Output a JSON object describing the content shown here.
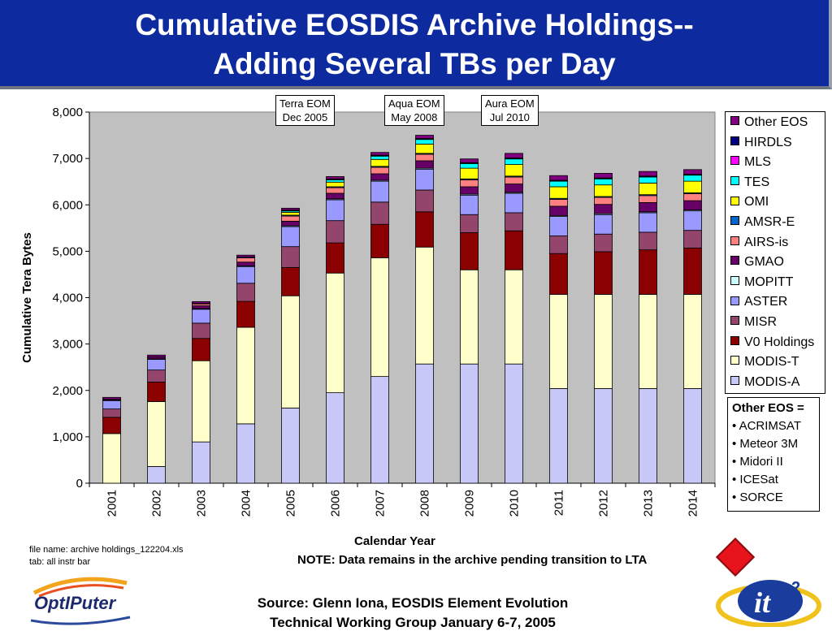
{
  "header": {
    "line1": "Cumulative EOSDIS Archive Holdings--",
    "line2": "Adding Several TBs per Day"
  },
  "callouts": [
    {
      "line1": "Terra EOM",
      "line2": "Dec 2005"
    },
    {
      "line1": "Aqua EOM",
      "line2": "May 2008"
    },
    {
      "line1": "Aura EOM",
      "line2": "Jul 2010"
    }
  ],
  "chart_data": {
    "type": "bar",
    "stacked": true,
    "title": "",
    "xlabel": "Calendar Year",
    "ylabel": "Cumulative Tera Bytes",
    "ylim": [
      0,
      8000
    ],
    "yticks": [
      "0",
      "1,000",
      "2,000",
      "3,000",
      "4,000",
      "5,000",
      "6,000",
      "7,000",
      "8,000"
    ],
    "grid": false,
    "legend_position": "right",
    "categories": [
      "2001",
      "2002",
      "2003",
      "2004",
      "2005",
      "2006",
      "2007",
      "2008",
      "2009",
      "2010",
      "2011",
      "2012",
      "2013",
      "2014"
    ],
    "series": [
      {
        "name": "MODIS-A",
        "color": "#c8c8f8",
        "values": [
          0,
          360,
          890,
          1280,
          1620,
          1950,
          2300,
          2570,
          2570,
          2570,
          2040,
          2040,
          2040,
          2040
        ]
      },
      {
        "name": "MODIS-T",
        "color": "#ffffcc",
        "values": [
          1070,
          1400,
          1750,
          2080,
          2420,
          2580,
          2560,
          2520,
          2030,
          2030,
          2030,
          2030,
          2030,
          2030
        ]
      },
      {
        "name": "V0 Holdings",
        "color": "#8b0000",
        "values": [
          350,
          420,
          480,
          560,
          610,
          650,
          720,
          760,
          800,
          840,
          880,
          920,
          960,
          1000
        ]
      },
      {
        "name": "MISR",
        "color": "#93456b",
        "values": [
          180,
          260,
          330,
          390,
          450,
          480,
          480,
          470,
          390,
          390,
          380,
          380,
          380,
          380
        ]
      },
      {
        "name": "ASTER",
        "color": "#9999ff",
        "values": [
          180,
          230,
          300,
          360,
          430,
          450,
          450,
          450,
          420,
          420,
          420,
          420,
          420,
          420
        ]
      },
      {
        "name": "MOPITT",
        "color": "#ccffff",
        "values": [
          10,
          12,
          14,
          16,
          18,
          20,
          20,
          20,
          20,
          20,
          20,
          20,
          20,
          20
        ]
      },
      {
        "name": "GMAO",
        "color": "#660066",
        "values": [
          20,
          40,
          60,
          80,
          100,
          120,
          140,
          160,
          160,
          180,
          200,
          200,
          200,
          200
        ]
      },
      {
        "name": "AIRS-is",
        "color": "#ff8080",
        "values": [
          0,
          0,
          40,
          90,
          110,
          120,
          140,
          140,
          150,
          150,
          150,
          150,
          150,
          150
        ]
      },
      {
        "name": "AMSR-E",
        "color": "#0066cc",
        "values": [
          0,
          0,
          10,
          20,
          20,
          20,
          20,
          20,
          20,
          20,
          20,
          20,
          20,
          20
        ]
      },
      {
        "name": "OMI",
        "color": "#ffff00",
        "values": [
          0,
          0,
          0,
          0,
          60,
          100,
          150,
          200,
          230,
          250,
          250,
          250,
          250,
          250
        ]
      },
      {
        "name": "TES",
        "color": "#00ffff",
        "values": [
          0,
          0,
          0,
          0,
          30,
          50,
          70,
          100,
          100,
          120,
          120,
          130,
          130,
          130
        ]
      },
      {
        "name": "MLS",
        "color": "#ff00ff",
        "values": [
          0,
          0,
          0,
          0,
          10,
          10,
          10,
          10,
          10,
          10,
          10,
          10,
          10,
          10
        ]
      },
      {
        "name": "HIRDLS",
        "color": "#000080",
        "values": [
          0,
          0,
          0,
          0,
          10,
          10,
          10,
          10,
          10,
          10,
          10,
          10,
          10,
          10
        ]
      },
      {
        "name": "Other EOS",
        "color": "#800080",
        "values": [
          40,
          40,
          40,
          40,
          40,
          50,
          60,
          70,
          80,
          100,
          100,
          100,
          100,
          100
        ]
      }
    ]
  },
  "other_eos": {
    "title": "Other EOS =",
    "items": [
      "• ACRIMSAT",
      "• Meteor 3M",
      "• Midori II",
      "• ICESat",
      "• SORCE"
    ]
  },
  "file_info": {
    "name": "file name: archive holdings_122204.xls",
    "tab": "tab: all instr bar"
  },
  "note": "NOTE: Data remains in the archive pending transition to LTA",
  "source": {
    "line1": "Source: Glenn Iona, EOSDIS Element Evolution",
    "line2": "Technical Working Group January 6-7, 2005"
  },
  "logos": {
    "optiputer": "OptIPuter",
    "it2": "it",
    "it2_sup": "2"
  }
}
